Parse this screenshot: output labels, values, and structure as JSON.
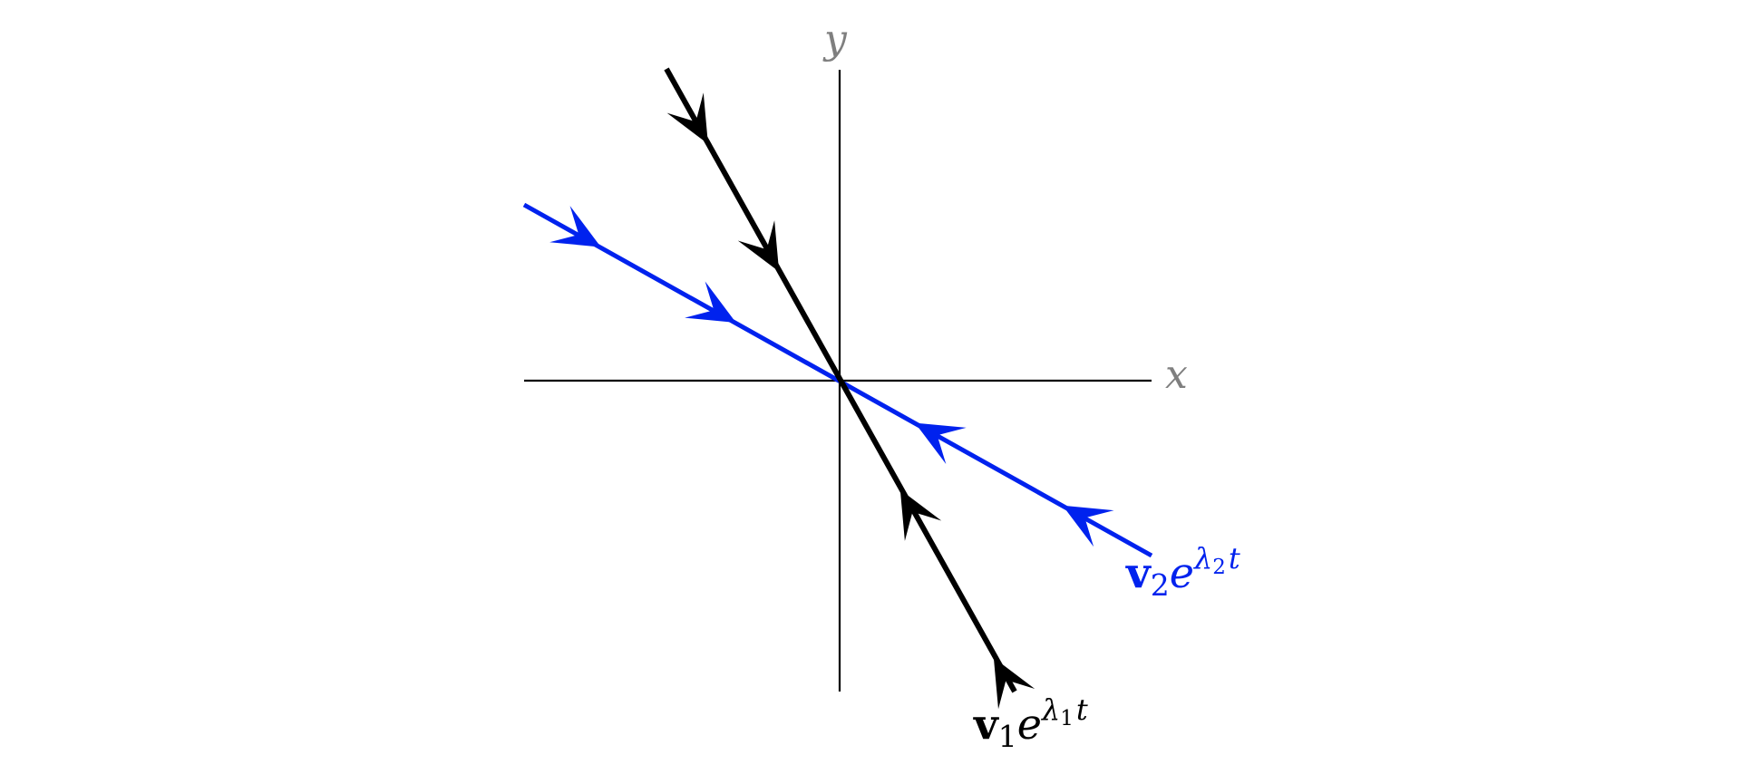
{
  "colors": {
    "axis": "#000000",
    "axis_label": "#7f7f7f",
    "eigen1": "#000000",
    "eigen2": "#0022ee",
    "background": "#ffffff"
  },
  "axes": {
    "x_label": "x",
    "y_label": "y"
  },
  "eigen1": {
    "vector": "v",
    "subscript": "1",
    "exp_base": "e",
    "exp_symbol": "λ",
    "exp_subscript": "1",
    "exp_var": "t",
    "direction": [
      -1,
      1.8
    ],
    "arrow_positions": [
      -0.89,
      -0.35,
      0.35,
      0.76
    ]
  },
  "eigen2": {
    "vector": "v",
    "subscript": "2",
    "exp_base": "e",
    "exp_symbol": "λ",
    "exp_subscript": "2",
    "exp_var": "t",
    "direction": [
      -1,
      0.56
    ],
    "arrow_positions": [
      -0.71,
      -0.24,
      0.33,
      0.76
    ]
  }
}
